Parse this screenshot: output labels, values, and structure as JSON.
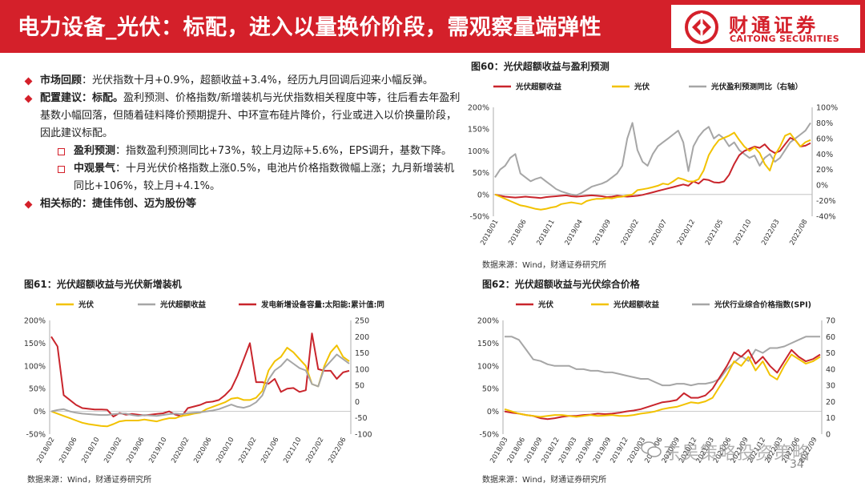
{
  "header": {
    "title": "电力设备_光伏：标配，进入以量换价阶段，需观察量端弹性",
    "logo_cn": "财通证券",
    "logo_en": "CAITONG SECURITIES",
    "brand_color": "#d4202a"
  },
  "bullets": {
    "market_label": "市场回顾",
    "market_text": "：光伏指数十月+0.9%，超额收益+3.4%，经历九月回调后迎来小幅反弹。",
    "config_label": "配置建议：标配。",
    "config_text": "盈利预测、价格指数/新增装机与光伏指数相关程度中等，往后看去年盈利基数小幅回落，但随着硅料降价预期提升、中环宣布硅片降价，行业或进入以价换量阶段，因此建议标配。",
    "profit_label": "盈利预测",
    "profit_text": "：指数盈利预测同比+73%，较上月边际+5.6%，EPS调升，基数下降。",
    "macro_label": "中观景气",
    "macro_text": "：十月光伏价格指数上涨0.5%，电池片价格指数微幅上涨；九月新增装机同比+106%，较上月+4.1%。",
    "related_label": "相关标的：捷佳伟创、迈为股份等"
  },
  "source_text": "数据来源：Wind，财通证券研究所",
  "watermark": "东吴策略投资策略",
  "page_number": "34",
  "colors": {
    "red": "#c9252c",
    "yellow": "#f2c200",
    "gray": "#a6a6a6"
  },
  "chart_data": [
    {
      "id": "fig60",
      "type": "line",
      "title": "图60：光伏超额收益与盈利预测",
      "x_ticks": [
        "2018/01",
        "2018/06",
        "2018/11",
        "2019/04",
        "2019/09",
        "2020/02",
        "2020/07",
        "2020/12",
        "2021/05",
        "2021/10",
        "2022/03",
        "2022/08"
      ],
      "ylim": [
        -50,
        200
      ],
      "y_ticks": [
        "200%",
        "150%",
        "100%",
        "50%",
        "0%",
        "-50%"
      ],
      "y2lim": [
        -40,
        100
      ],
      "y2_ticks": [
        "100%",
        "80%",
        "60%",
        "40%",
        "20%",
        "0%",
        "-20%",
        "-40%"
      ],
      "legend": [
        "光伏超额收益",
        "光伏",
        "光伏盈利预测同比（右轴）"
      ],
      "series": [
        {
          "name": "光伏超额收益",
          "color": "#c9252c",
          "axis": "left",
          "values": [
            0,
            -3,
            -5,
            -6,
            -7,
            -6,
            -5,
            -6,
            -7,
            -8,
            -6,
            -5,
            -4,
            -3,
            -2,
            -4,
            -5,
            -4,
            -3,
            -2,
            -3,
            -4,
            -6,
            -5,
            -3,
            -4,
            -5,
            -4,
            -3,
            -1,
            2,
            5,
            8,
            11,
            14,
            17,
            20,
            23,
            20,
            30,
            25,
            35,
            33,
            28,
            27,
            30,
            45,
            70,
            90,
            100,
            105,
            110,
            107,
            115,
            102,
            95,
            100,
            115,
            130,
            125,
            110,
            112,
            118
          ]
        },
        {
          "name": "光伏",
          "color": "#f2c200",
          "axis": "left",
          "values": [
            0,
            -5,
            -10,
            -15,
            -20,
            -25,
            -27,
            -30,
            -33,
            -35,
            -33,
            -30,
            -28,
            -22,
            -20,
            -18,
            -20,
            -22,
            -15,
            -12,
            -10,
            -10,
            -8,
            -9,
            -6,
            -5,
            -2,
            0,
            10,
            12,
            14,
            17,
            20,
            25,
            23,
            30,
            38,
            35,
            30,
            30,
            35,
            55,
            90,
            110,
            125,
            130,
            135,
            142,
            125,
            110,
            100,
            108,
            95,
            70,
            55,
            90,
            110,
            135,
            140,
            125,
            110,
            120,
            125
          ]
        },
        {
          "name": "光伏盈利预测同比（右轴）",
          "color": "#a6a6a6",
          "axis": "right",
          "values": [
            10,
            20,
            25,
            35,
            40,
            15,
            10,
            5,
            8,
            10,
            5,
            0,
            -5,
            -8,
            -10,
            -12,
            -13,
            -10,
            -6,
            -2,
            0,
            2,
            5,
            10,
            15,
            25,
            60,
            80,
            45,
            30,
            25,
            40,
            50,
            55,
            60,
            65,
            70,
            55,
            18,
            50,
            62,
            70,
            75,
            60,
            65,
            60,
            50,
            55,
            45,
            40,
            35,
            38,
            25,
            35,
            40,
            30,
            35,
            45,
            55,
            60,
            65,
            70,
            80
          ]
        }
      ]
    },
    {
      "id": "fig61",
      "type": "line",
      "title": "图61：光伏超额收益与光伏新增装机",
      "x_ticks": [
        "2018/02",
        "2018/06",
        "2018/10",
        "2019/02",
        "2019/06",
        "2019/10",
        "2020/02",
        "2020/06",
        "2020/10",
        "2021/02",
        "2021/06",
        "2021/10",
        "2022/02",
        "2022/06"
      ],
      "ylim": [
        -50,
        200
      ],
      "y_ticks": [
        "200%",
        "150%",
        "100%",
        "50%",
        "0%",
        "-50%"
      ],
      "y2lim": [
        -100,
        250
      ],
      "y2_ticks": [
        "250",
        "200",
        "150",
        "100",
        "50",
        "0",
        "-50",
        "-100"
      ],
      "legend": [
        "光伏",
        "光伏超额收益",
        "发电新增设备容量:太阳能:累计值:同比"
      ],
      "series": [
        {
          "name": "光伏",
          "color": "#f2c200",
          "axis": "left",
          "values": [
            0,
            -5,
            -10,
            -15,
            -20,
            -25,
            -28,
            -30,
            -32,
            -33,
            -28,
            -22,
            -20,
            -20,
            -20,
            -18,
            -20,
            -22,
            -18,
            -15,
            -15,
            -10,
            -8,
            -5,
            -3,
            5,
            10,
            15,
            20,
            28,
            30,
            25,
            25,
            30,
            45,
            90,
            110,
            120,
            140,
            130,
            115,
            100,
            60,
            55,
            100,
            130,
            145,
            120,
            110
          ]
        },
        {
          "name": "光伏超额收益",
          "color": "#a6a6a6",
          "axis": "left",
          "values": [
            0,
            3,
            5,
            0,
            -3,
            -5,
            -6,
            -7,
            -8,
            -8,
            -6,
            -5,
            -5,
            -8,
            -10,
            -8,
            -9,
            -10,
            -8,
            -6,
            -5,
            -6,
            -4,
            -3,
            -2,
            0,
            2,
            5,
            10,
            15,
            10,
            8,
            12,
            20,
            35,
            70,
            90,
            100,
            115,
            105,
            95,
            90,
            60,
            55,
            95,
            110,
            125,
            115,
            105
          ]
        },
        {
          "name": "发电新增设备容量:太阳能:累计值:同比",
          "color": "#c9252c",
          "axis": "right",
          "values": [
            200,
            170,
            20,
            5,
            -10,
            -20,
            -22,
            -24,
            -24,
            -25,
            -46,
            -35,
            -40,
            -38,
            -40,
            -42,
            -40,
            -38,
            -36,
            -30,
            -40,
            -45,
            -20,
            -15,
            -10,
            -2,
            0,
            5,
            20,
            40,
            80,
            130,
            180,
            60,
            60,
            55,
            70,
            30,
            40,
            42,
            30,
            35,
            210,
            100,
            95,
            95,
            70,
            90,
            95
          ]
        }
      ]
    },
    {
      "id": "fig62",
      "type": "line",
      "title": "图62：光伏超额收益与光伏综合价格",
      "x_ticks": [
        "2018/03",
        "2018/06",
        "2018/09",
        "2018/12",
        "2019/03",
        "2019/06",
        "2019/09",
        "2019/12",
        "2020/03",
        "2020/06",
        "2020/09",
        "2020/12",
        "2021/03",
        "2021/06",
        "2021/09",
        "2021/12",
        "2022/03",
        "2022/06",
        "2022/09"
      ],
      "ylim": [
        -50,
        200
      ],
      "y_ticks": [
        "200%",
        "150%",
        "100%",
        "50%",
        "0%",
        "-50%"
      ],
      "y2lim": [
        0,
        70
      ],
      "y2_ticks": [
        "70",
        "60",
        "50",
        "40",
        "30",
        "20",
        "10",
        "0"
      ],
      "legend": [
        "光伏",
        "光伏超额收益",
        "光伏行业综合价格指数(SPI)"
      ],
      "series": [
        {
          "name": "光伏",
          "color": "#c9252c",
          "axis": "left",
          "values": [
            0,
            -3,
            -5,
            -8,
            -10,
            -15,
            -17,
            -15,
            -12,
            -10,
            -10,
            -8,
            -7,
            -5,
            -6,
            -5,
            -3,
            0,
            2,
            5,
            10,
            15,
            20,
            22,
            25,
            40,
            30,
            30,
            35,
            50,
            75,
            100,
            130,
            120,
            135,
            105,
            120,
            100,
            85,
            110,
            135,
            120,
            110,
            115,
            125
          ]
        },
        {
          "name": "光伏超额收益",
          "color": "#f2c200",
          "axis": "left",
          "values": [
            5,
            0,
            -5,
            -8,
            -10,
            -12,
            -10,
            -8,
            -8,
            -10,
            -12,
            -10,
            -8,
            -10,
            -9,
            -8,
            -10,
            -10,
            -8,
            -5,
            -3,
            0,
            5,
            8,
            10,
            15,
            20,
            18,
            22,
            30,
            55,
            80,
            110,
            100,
            120,
            90,
            110,
            80,
            70,
            100,
            125,
            115,
            105,
            110,
            120
          ]
        },
        {
          "name": "光伏行业综合价格指数(SPI)",
          "color": "#a6a6a6",
          "axis": "right",
          "values": [
            60,
            60,
            58,
            52,
            46,
            45,
            43,
            42,
            42,
            42,
            40,
            40,
            39,
            39,
            38,
            38,
            37,
            36,
            35,
            34,
            34,
            32,
            30,
            30,
            31,
            31,
            30,
            31,
            31,
            32,
            34,
            40,
            44,
            48,
            45,
            52,
            50,
            53,
            53,
            54,
            56,
            58,
            60,
            60,
            60
          ]
        }
      ]
    }
  ]
}
